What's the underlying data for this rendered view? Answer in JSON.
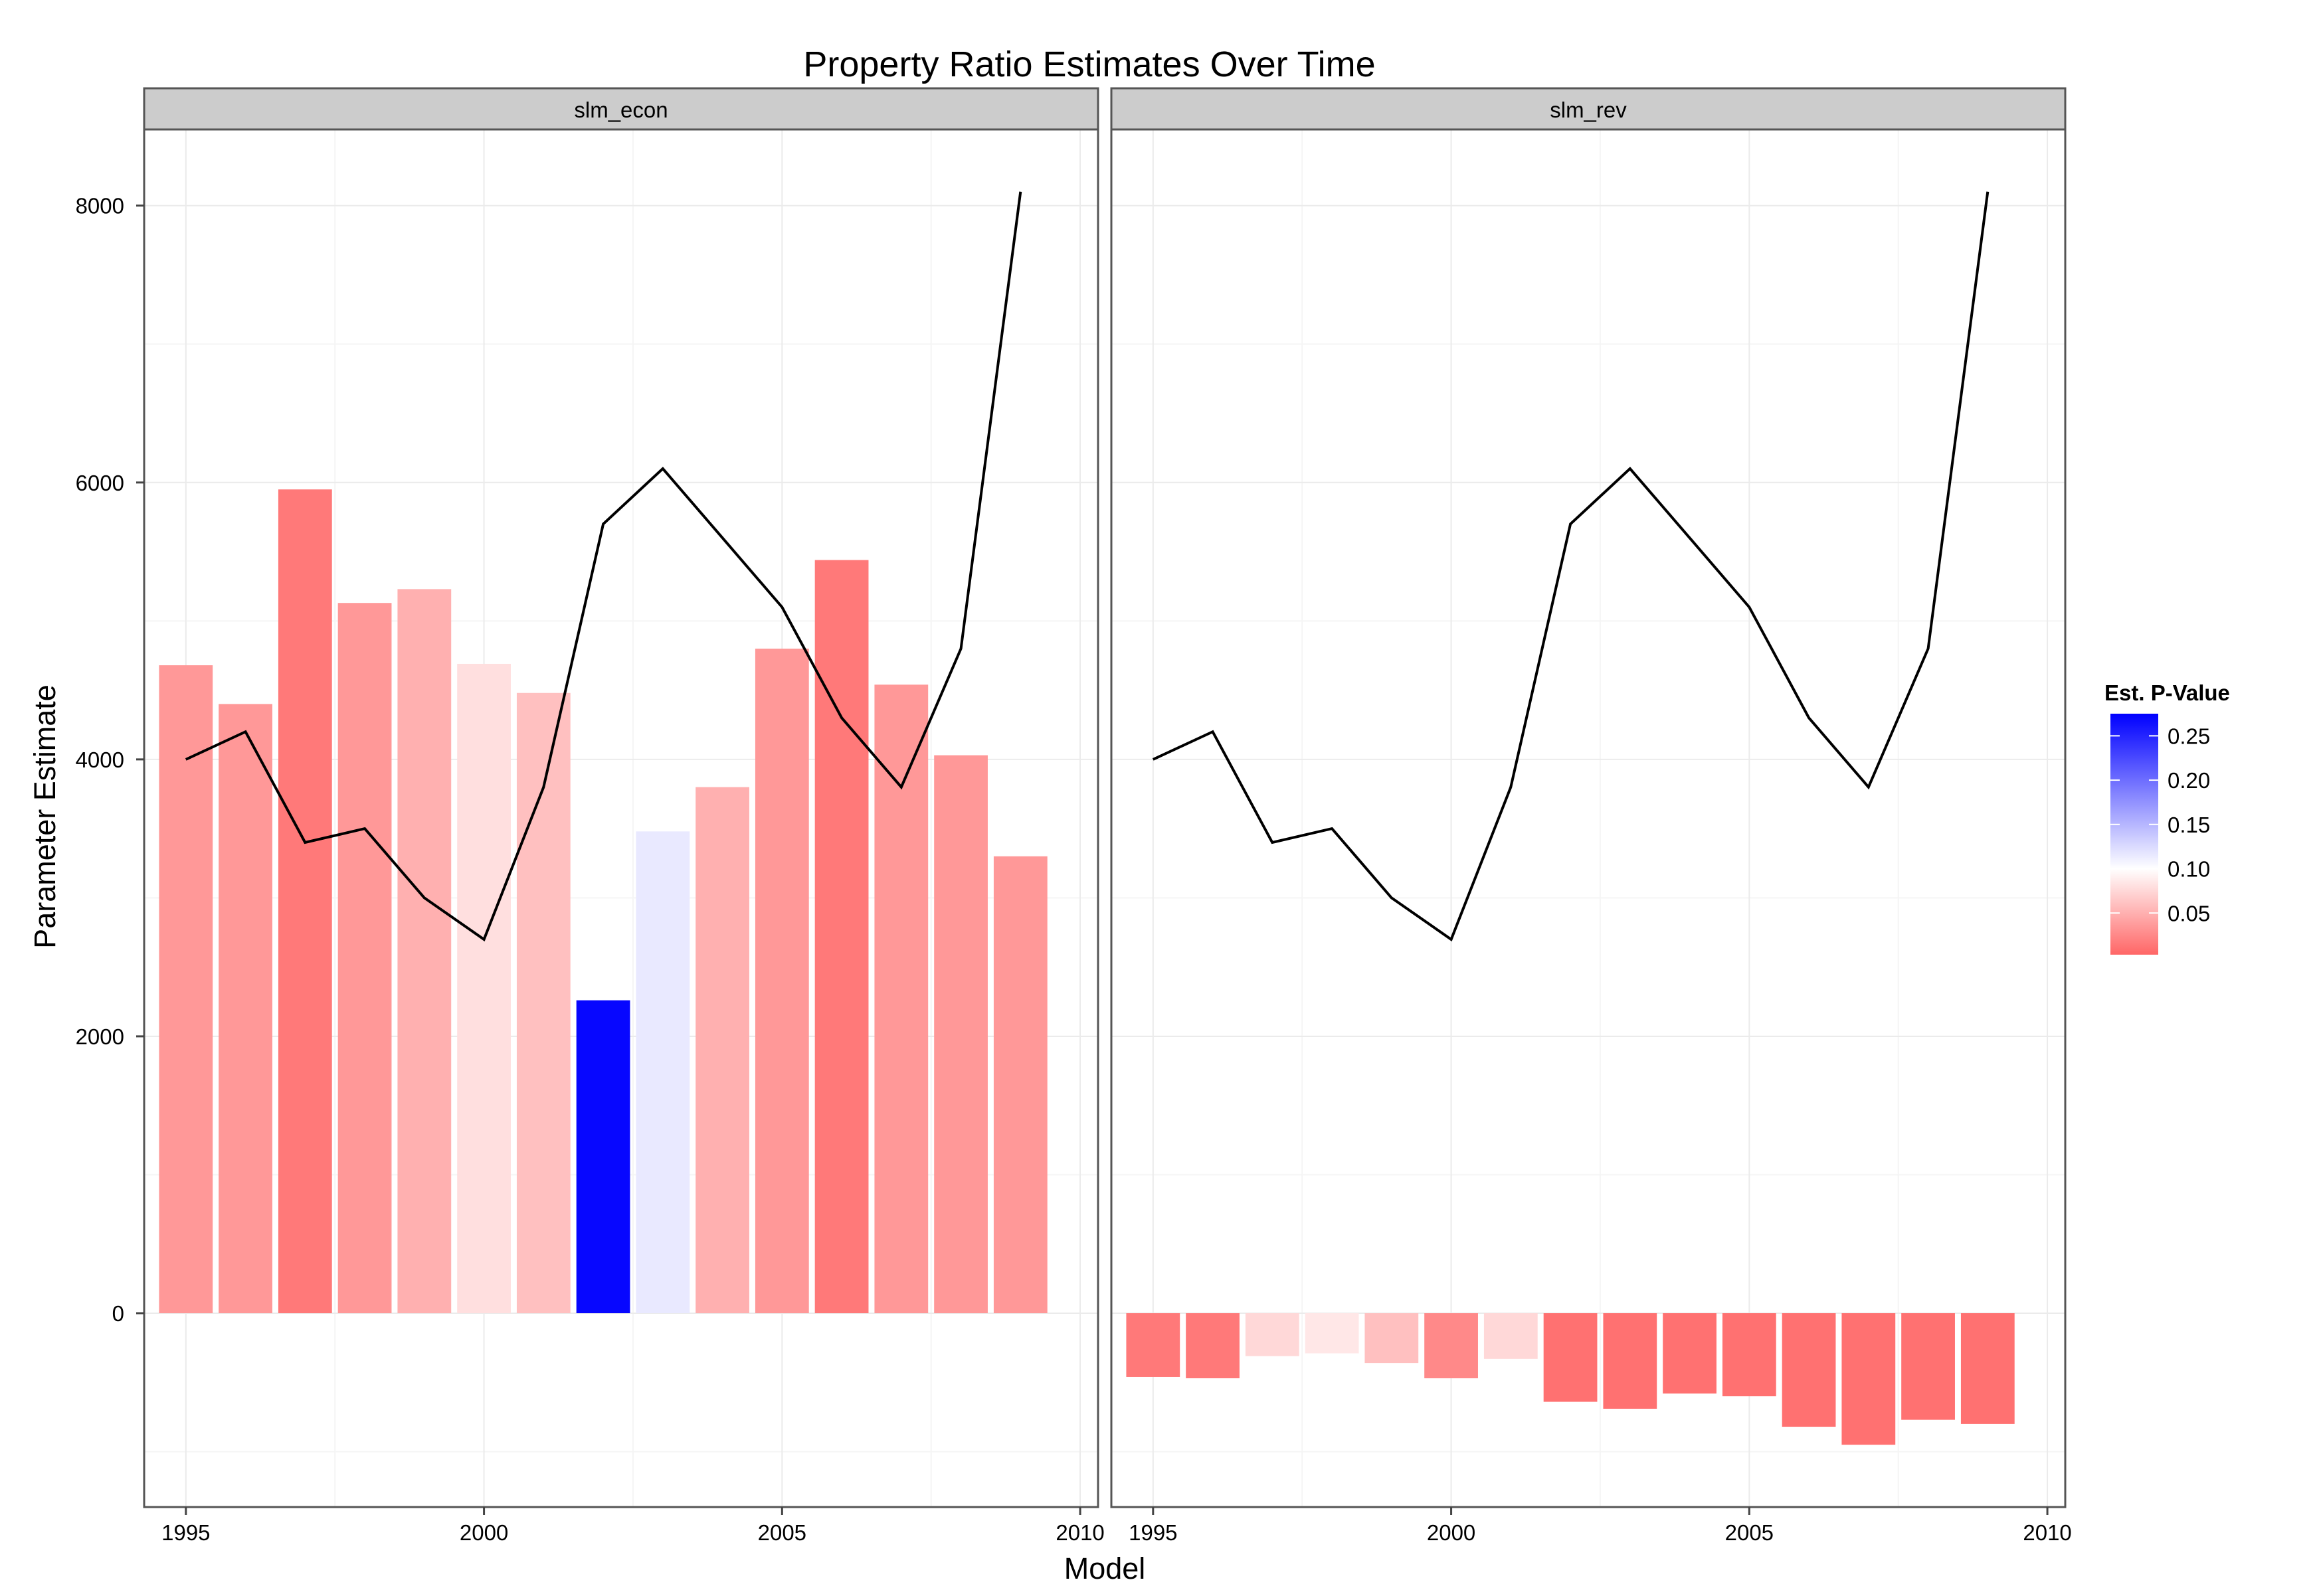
{
  "chart_data": {
    "type": "bar",
    "title": "Property Ratio Estimates Over Time",
    "xlabel": "Model",
    "ylabel": "Parameter Estimate",
    "x": [
      1995,
      1996,
      1997,
      1998,
      1999,
      2000,
      2001,
      2002,
      2003,
      2004,
      2005,
      2006,
      2007,
      2008,
      2009
    ],
    "xlim": [
      1994.3,
      2010.3
    ],
    "ylim": [
      -1400,
      8550
    ],
    "x_ticks": [
      1995,
      2000,
      2005,
      2010
    ],
    "y_ticks": [
      0,
      2000,
      4000,
      6000,
      8000
    ],
    "grid": true,
    "panels": [
      {
        "name": "slm_econ",
        "bar_values": [
          4680,
          4400,
          5950,
          5130,
          5230,
          4690,
          4480,
          2260,
          3480,
          3800,
          4800,
          5440,
          4540,
          4030,
          3300
        ],
        "bar_pvalues": [
          0.035,
          0.035,
          0.015,
          0.035,
          0.05,
          0.08,
          0.06,
          0.27,
          0.115,
          0.05,
          0.035,
          0.015,
          0.035,
          0.035,
          0.035
        ],
        "line_values": [
          4000,
          4200,
          3400,
          3500,
          3000,
          2700,
          3800,
          5700,
          6100,
          5600,
          5100,
          4300,
          3800,
          4800,
          8100
        ]
      },
      {
        "name": "slm_rev",
        "bar_values": [
          -460,
          -470,
          -310,
          -290,
          -360,
          -470,
          -330,
          -640,
          -690,
          -580,
          -600,
          -820,
          -950,
          -770,
          -800
        ],
        "bar_pvalues": [
          0.015,
          0.015,
          0.075,
          0.085,
          0.06,
          0.025,
          0.075,
          0.01,
          0.01,
          0.01,
          0.01,
          0.01,
          0.01,
          0.01,
          0.01
        ],
        "line_values": [
          4000,
          4200,
          3400,
          3500,
          3000,
          2700,
          3800,
          5700,
          6100,
          5600,
          5100,
          4300,
          3800,
          4800,
          8100
        ]
      }
    ],
    "legend": {
      "title": "Est. P-Value",
      "placement": "right",
      "ticks": [
        0.25,
        0.2,
        0.15,
        0.1,
        0.05
      ],
      "tick_labels": [
        "0.25",
        "0.20",
        "0.15",
        "0.10",
        "0.05"
      ],
      "range": [
        0.003,
        0.275
      ],
      "midpoint": 0.1
    },
    "colors": {
      "low": "#ff6666",
      "mid": "#ffffff",
      "high": "#0000ff",
      "line": "#000000",
      "strip": "#cccccc",
      "grid": "#ebebeb"
    }
  }
}
